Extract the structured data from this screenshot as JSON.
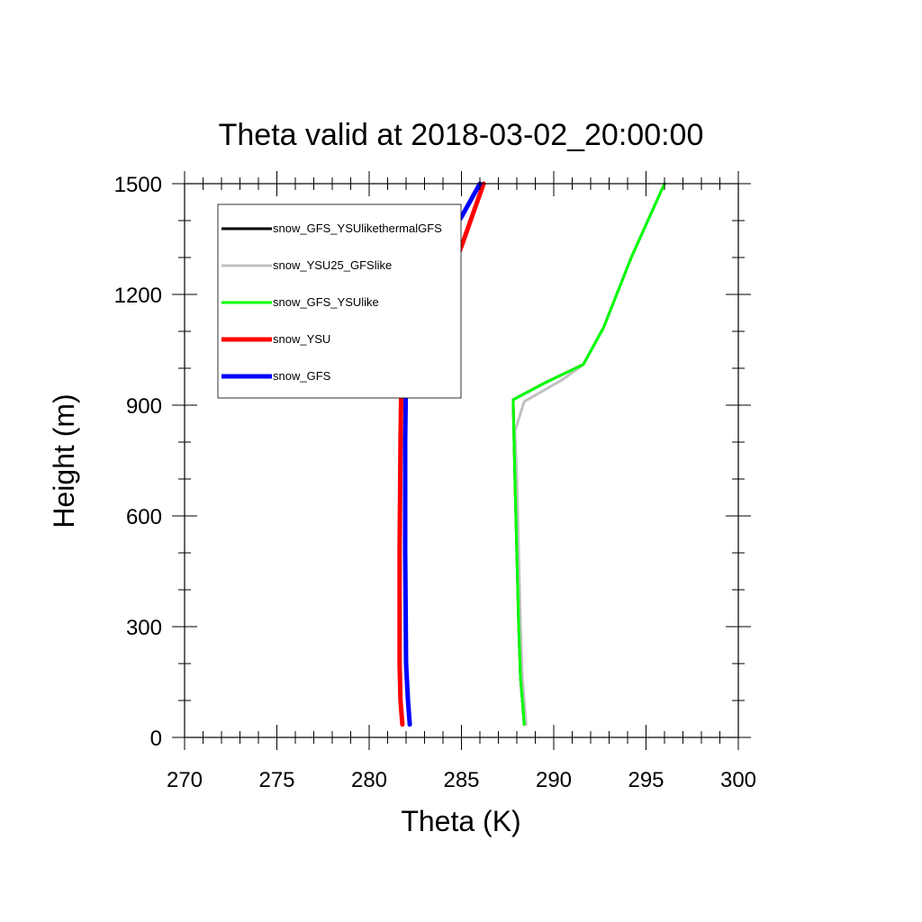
{
  "chart_data": {
    "type": "line",
    "title": "Theta valid at 2018-03-02_20:00:00",
    "xlabel": "Theta (K)",
    "ylabel": "Height (m)",
    "xlim": [
      270,
      300
    ],
    "ylim": [
      0,
      1500
    ],
    "xticks": [
      270,
      275,
      280,
      285,
      290,
      295,
      300
    ],
    "yticks": [
      0,
      300,
      600,
      900,
      1200,
      1500
    ],
    "x_minor_step": 1,
    "y_minor_step": 100,
    "grid": false,
    "legend_position": "top-left",
    "series": [
      {
        "name": "snow_GFS_YSUlikethermalGFS",
        "color": "#000000",
        "points": [
          [
            288.4,
            35
          ],
          [
            288.3,
            100
          ],
          [
            288.2,
            160
          ],
          [
            288.1,
            300
          ],
          [
            288.0,
            500
          ],
          [
            287.9,
            700
          ],
          [
            287.8,
            915
          ],
          [
            289.5,
            960
          ],
          [
            291.6,
            1010
          ],
          [
            292.7,
            1110
          ],
          [
            294.2,
            1300
          ],
          [
            296.0,
            1500
          ]
        ]
      },
      {
        "name": "snow_YSU25_GFSlike",
        "color": "#c0c0c0",
        "points": [
          [
            288.5,
            35
          ],
          [
            288.4,
            100
          ],
          [
            288.3,
            160
          ],
          [
            288.2,
            300
          ],
          [
            288.1,
            500
          ],
          [
            288.0,
            700
          ],
          [
            287.9,
            830
          ],
          [
            288.4,
            910
          ],
          [
            290.5,
            970
          ],
          [
            291.6,
            1010
          ],
          [
            292.7,
            1110
          ],
          [
            294.2,
            1300
          ],
          [
            296.0,
            1500
          ]
        ]
      },
      {
        "name": "snow_GFS_YSUlike",
        "color": "#00ff00",
        "points": [
          [
            288.4,
            35
          ],
          [
            288.3,
            100
          ],
          [
            288.2,
            160
          ],
          [
            288.1,
            300
          ],
          [
            288.0,
            500
          ],
          [
            287.9,
            700
          ],
          [
            287.8,
            915
          ],
          [
            289.5,
            960
          ],
          [
            291.6,
            1010
          ],
          [
            292.7,
            1110
          ],
          [
            294.2,
            1300
          ],
          [
            296.0,
            1500
          ]
        ]
      },
      {
        "name": "snow_YSU",
        "color": "#ff0000",
        "points": [
          [
            281.8,
            35
          ],
          [
            281.7,
            100
          ],
          [
            281.65,
            200
          ],
          [
            281.65,
            500
          ],
          [
            281.7,
            800
          ],
          [
            281.75,
            995
          ],
          [
            282.5,
            1090
          ],
          [
            283.9,
            1195
          ],
          [
            285.0,
            1330
          ],
          [
            286.2,
            1500
          ]
        ]
      },
      {
        "name": "snow_GFS",
        "color": "#0000ff",
        "points": [
          [
            282.2,
            35
          ],
          [
            282.1,
            100
          ],
          [
            282.0,
            200
          ],
          [
            281.95,
            500
          ],
          [
            281.95,
            800
          ],
          [
            282.0,
            1000
          ],
          [
            282.1,
            1100
          ],
          [
            282.2,
            1195
          ],
          [
            282.9,
            1250
          ],
          [
            283.6,
            1310
          ],
          [
            285.0,
            1410
          ],
          [
            286.0,
            1500
          ]
        ]
      }
    ]
  }
}
